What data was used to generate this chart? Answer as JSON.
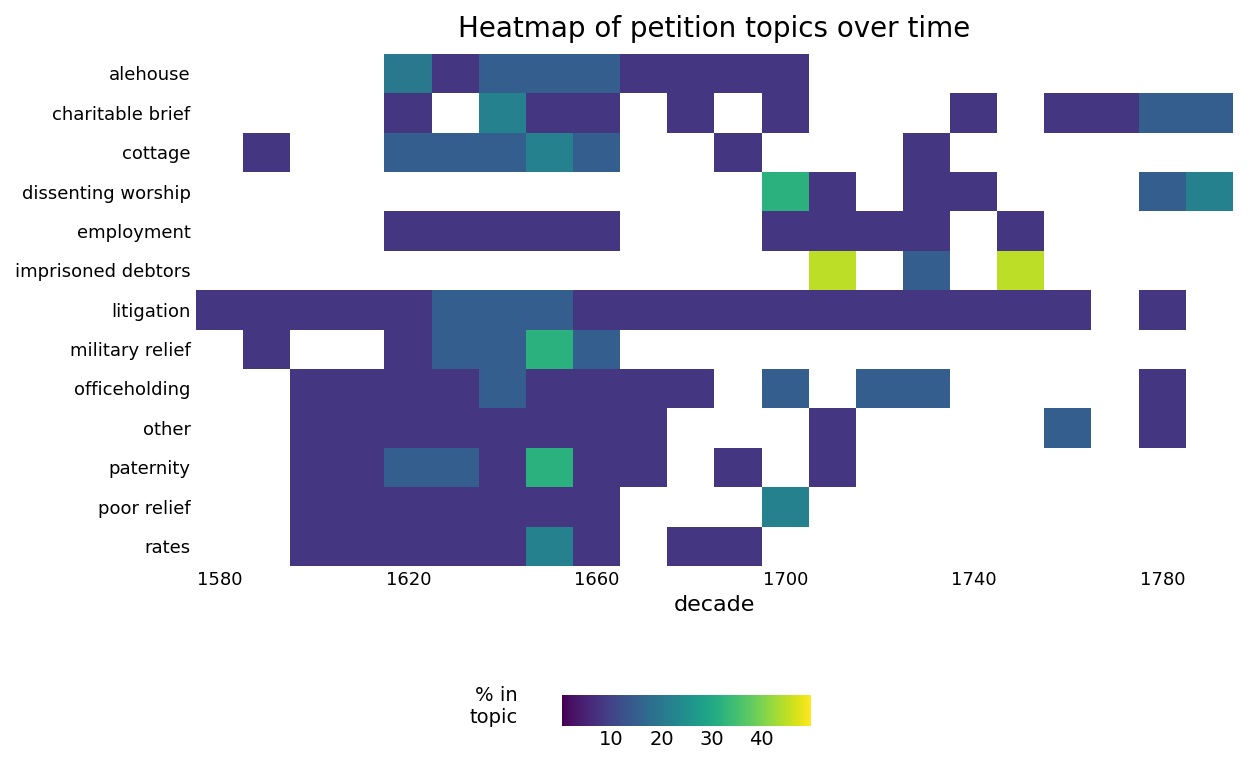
{
  "title": "Heatmap of petition topics over time",
  "xlabel": "decade",
  "topics": [
    "alehouse",
    "charitable brief",
    "cottage",
    "dissenting worship",
    "employment",
    "imprisoned debtors",
    "litigation",
    "military relief",
    "officeholding",
    "other",
    "paternity",
    "poor relief",
    "rates"
  ],
  "decades": [
    1580,
    1590,
    1600,
    1610,
    1620,
    1630,
    1640,
    1650,
    1660,
    1670,
    1680,
    1690,
    1700,
    1710,
    1720,
    1730,
    1740,
    1750,
    1760,
    1770,
    1780,
    1790
  ],
  "data": {
    "alehouse": [
      null,
      null,
      null,
      null,
      20,
      8,
      15,
      15,
      15,
      8,
      8,
      8,
      8,
      null,
      null,
      null,
      null,
      null,
      null,
      null,
      null,
      null
    ],
    "charitable brief": [
      null,
      null,
      null,
      null,
      8,
      null,
      22,
      8,
      8,
      null,
      8,
      null,
      8,
      null,
      null,
      null,
      8,
      null,
      8,
      8,
      15,
      15
    ],
    "cottage": [
      null,
      8,
      null,
      null,
      15,
      15,
      15,
      22,
      15,
      null,
      null,
      8,
      null,
      null,
      null,
      8,
      null,
      null,
      null,
      null,
      null,
      null
    ],
    "dissenting worship": [
      null,
      null,
      null,
      null,
      null,
      null,
      null,
      null,
      null,
      null,
      null,
      null,
      32,
      8,
      null,
      8,
      8,
      null,
      null,
      null,
      15,
      22
    ],
    "employment": [
      null,
      null,
      null,
      null,
      8,
      8,
      8,
      8,
      8,
      null,
      null,
      null,
      8,
      8,
      8,
      8,
      null,
      8,
      null,
      null,
      null,
      null
    ],
    "imprisoned debtors": [
      null,
      null,
      null,
      null,
      null,
      null,
      null,
      null,
      null,
      null,
      null,
      null,
      null,
      45,
      null,
      15,
      null,
      45,
      null,
      null,
      null,
      null
    ],
    "litigation": [
      8,
      8,
      8,
      8,
      8,
      15,
      15,
      15,
      8,
      8,
      8,
      8,
      8,
      8,
      8,
      8,
      8,
      8,
      8,
      null,
      8,
      null
    ],
    "military relief": [
      null,
      8,
      null,
      null,
      8,
      15,
      15,
      32,
      15,
      null,
      null,
      null,
      null,
      null,
      null,
      null,
      null,
      null,
      null,
      null,
      null,
      null
    ],
    "officeholding": [
      null,
      null,
      8,
      8,
      8,
      8,
      15,
      8,
      8,
      8,
      8,
      null,
      15,
      null,
      15,
      15,
      null,
      null,
      null,
      null,
      8,
      null
    ],
    "other": [
      null,
      null,
      8,
      8,
      8,
      8,
      8,
      8,
      8,
      8,
      null,
      null,
      null,
      8,
      null,
      null,
      null,
      null,
      15,
      null,
      8,
      null
    ],
    "paternity": [
      null,
      null,
      8,
      8,
      15,
      15,
      8,
      32,
      8,
      8,
      null,
      8,
      null,
      8,
      null,
      null,
      null,
      null,
      null,
      null,
      null,
      null
    ],
    "poor relief": [
      null,
      null,
      8,
      8,
      8,
      8,
      8,
      8,
      8,
      null,
      null,
      null,
      22,
      null,
      null,
      null,
      null,
      null,
      null,
      null,
      null,
      null
    ],
    "rates": [
      null,
      null,
      8,
      8,
      8,
      8,
      8,
      22,
      8,
      null,
      8,
      8,
      null,
      null,
      null,
      null,
      null,
      null,
      null,
      null,
      null,
      null
    ]
  },
  "xtick_every": 4,
  "xtick_labels": [
    1580,
    1620,
    1660,
    1700,
    1740,
    1780
  ],
  "cmap": "viridis",
  "vmin": 0,
  "vmax": 50,
  "colorbar_ticks": [
    10,
    20,
    30,
    40
  ],
  "colorbar_label": "% in\ntopic",
  "background_color": "white",
  "title_fontsize": 20,
  "axis_label_fontsize": 16,
  "tick_fontsize": 13,
  "cbar_fontsize": 14
}
